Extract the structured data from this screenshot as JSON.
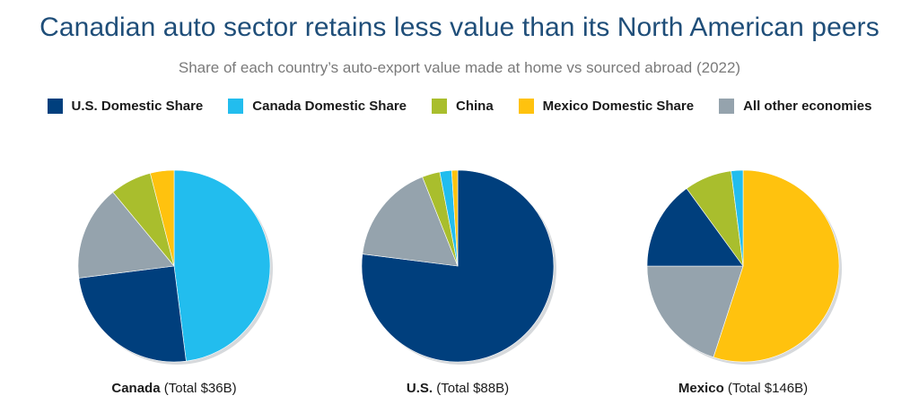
{
  "header": {
    "title": "Canadian auto sector retains less value than its North American peers",
    "subtitle": "Share of each country’s auto-export value made at home vs sourced abroad (2022)"
  },
  "legend": [
    {
      "label": "U.S. Domestic Share",
      "color": "#003f7d"
    },
    {
      "label": "Canada Domestic Share",
      "color": "#22bdee"
    },
    {
      "label": "China",
      "color": "#a9be2d"
    },
    {
      "label": "Mexico Domestic Share",
      "color": "#ffc20e"
    },
    {
      "label": "All other economies",
      "color": "#95a3ad"
    }
  ],
  "chart_data": [
    {
      "type": "pie",
      "country": "Canada",
      "total_label": "(Total $36B)",
      "slices": [
        {
          "name": "Canada Domestic Share",
          "value": 48
        },
        {
          "name": "U.S. Domestic Share",
          "value": 25
        },
        {
          "name": "All other economies",
          "value": 16
        },
        {
          "name": "China",
          "value": 7
        },
        {
          "name": "Mexico Domestic Share",
          "value": 4
        }
      ]
    },
    {
      "type": "pie",
      "country": "U.S.",
      "total_label": "(Total $88B)",
      "slices": [
        {
          "name": "U.S. Domestic Share",
          "value": 77
        },
        {
          "name": "All other economies",
          "value": 17
        },
        {
          "name": "China",
          "value": 3
        },
        {
          "name": "Canada Domestic Share",
          "value": 2
        },
        {
          "name": "Mexico Domestic Share",
          "value": 1
        }
      ]
    },
    {
      "type": "pie",
      "country": "Mexico",
      "total_label": "(Total $146B)",
      "slices": [
        {
          "name": "Mexico Domestic Share",
          "value": 55
        },
        {
          "name": "All other economies",
          "value": 20
        },
        {
          "name": "U.S. Domestic Share",
          "value": 15
        },
        {
          "name": "China",
          "value": 8
        },
        {
          "name": "Canada Domestic Share",
          "value": 2
        }
      ]
    }
  ]
}
